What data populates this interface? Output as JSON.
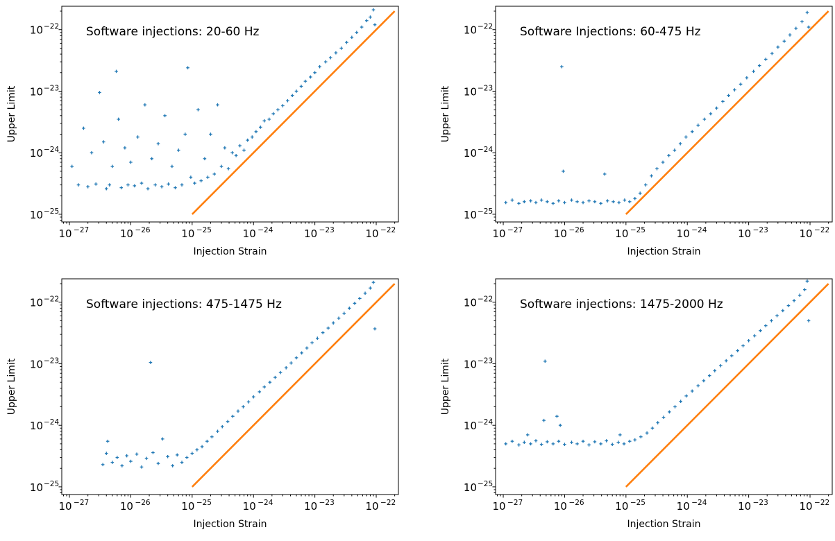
{
  "colors": {
    "points": "#1f77b4",
    "reference_line": "#ff7f0e",
    "axes": "#000000"
  },
  "chart_data": [
    {
      "type": "scatter",
      "title": "Software injections: 20-60 Hz",
      "xlabel": "Injection Strain",
      "ylabel": "Upper Limit",
      "xscale": "log",
      "yscale": "log",
      "xlim": [
        7.5e-28,
        2.3e-22
      ],
      "ylim": [
        7.5e-26,
        2.4e-22
      ],
      "xticks": [
        1e-27,
        1e-26,
        1e-25,
        1e-24,
        1e-23,
        1e-22
      ],
      "xtick_labels": [
        "10^-27",
        "10^-26",
        "10^-25",
        "10^-24",
        "10^-23",
        "10^-22"
      ],
      "yticks": [
        1e-25,
        1e-24,
        1e-23,
        1e-22
      ],
      "ytick_labels": [
        "10^-25",
        "10^-24",
        "10^-23",
        "10^-22"
      ],
      "grid": false,
      "line": {
        "x": [
          1e-25,
          2e-22
        ],
        "y": [
          1e-25,
          2e-22
        ]
      },
      "points": [
        [
          1.1e-27,
          6e-25
        ],
        [
          1.4e-27,
          3e-25
        ],
        [
          1.7e-27,
          2.5e-24
        ],
        [
          2e-27,
          2.8e-25
        ],
        [
          2.3e-27,
          1e-24
        ],
        [
          2.7e-27,
          3.1e-25
        ],
        [
          3.1e-27,
          9.5e-24
        ],
        [
          3.6e-27,
          1.5e-24
        ],
        [
          4e-27,
          2.6e-25
        ],
        [
          4.5e-27,
          3e-25
        ],
        [
          5e-27,
          6e-25
        ],
        [
          5.8e-27,
          2.1e-23
        ],
        [
          6.3e-27,
          3.5e-24
        ],
        [
          7e-27,
          2.7e-25
        ],
        [
          8e-27,
          1.2e-24
        ],
        [
          9e-27,
          3e-25
        ],
        [
          1e-26,
          7e-25
        ],
        [
          1.15e-26,
          2.9e-25
        ],
        [
          1.3e-26,
          1.8e-24
        ],
        [
          1.5e-26,
          3.2e-25
        ],
        [
          1.7e-26,
          6e-24
        ],
        [
          1.9e-26,
          2.6e-25
        ],
        [
          2.2e-26,
          8e-25
        ],
        [
          2.5e-26,
          3e-25
        ],
        [
          2.8e-26,
          1.4e-24
        ],
        [
          3.2e-26,
          2.8e-25
        ],
        [
          3.6e-26,
          4e-24
        ],
        [
          4.1e-26,
          3.1e-25
        ],
        [
          4.7e-26,
          6e-25
        ],
        [
          5.3e-26,
          2.7e-25
        ],
        [
          6e-26,
          1.1e-24
        ],
        [
          6.8e-26,
          3e-25
        ],
        [
          7.7e-26,
          2e-24
        ],
        [
          8.5e-26,
          2.4e-23
        ],
        [
          9.5e-26,
          4e-25
        ],
        [
          1.1e-25,
          3.2e-25
        ],
        [
          1.25e-25,
          5e-24
        ],
        [
          1.4e-25,
          3.5e-25
        ],
        [
          1.6e-25,
          8e-25
        ],
        [
          1.8e-25,
          4e-25
        ],
        [
          2e-25,
          2e-24
        ],
        [
          2.3e-25,
          4.5e-25
        ],
        [
          2.6e-25,
          6e-24
        ],
        [
          3e-25,
          6e-25
        ],
        [
          3.4e-25,
          1.2e-24
        ],
        [
          3.9e-25,
          5.5e-25
        ],
        [
          4.5e-25,
          1e-24
        ],
        [
          5.2e-25,
          9e-25
        ],
        [
          6e-25,
          1.3e-24
        ],
        [
          7e-25,
          1.1e-24
        ],
        [
          8e-25,
          1.6e-24
        ],
        [
          9.5e-25,
          1.8e-24
        ],
        [
          1.1e-24,
          2.2e-24
        ],
        [
          1.3e-24,
          2.6e-24
        ],
        [
          1.5e-24,
          3.3e-24
        ],
        [
          1.8e-24,
          3.5e-24
        ],
        [
          2.1e-24,
          4.3e-24
        ],
        [
          2.5e-24,
          5e-24
        ],
        [
          3e-24,
          5.8e-24
        ],
        [
          3.6e-24,
          7e-24
        ],
        [
          4.3e-24,
          8.5e-24
        ],
        [
          5e-24,
          1e-23
        ],
        [
          6e-24,
          1.2e-23
        ],
        [
          7e-24,
          1.45e-23
        ],
        [
          8.5e-24,
          1.7e-23
        ],
        [
          1e-23,
          2e-23
        ],
        [
          1.2e-23,
          2.5e-23
        ],
        [
          1.5e-23,
          3e-23
        ],
        [
          1.8e-23,
          3.5e-23
        ],
        [
          2.2e-23,
          4.2e-23
        ],
        [
          2.7e-23,
          5e-23
        ],
        [
          3.3e-23,
          6.2e-23
        ],
        [
          4e-23,
          7.5e-23
        ],
        [
          4.8e-23,
          9e-23
        ],
        [
          5.8e-23,
          1.1e-22
        ],
        [
          7e-23,
          1.4e-22
        ],
        [
          8e-23,
          1.6e-22
        ],
        [
          9e-23,
          2.1e-22
        ],
        [
          9.5e-23,
          1.2e-22
        ]
      ]
    },
    {
      "type": "scatter",
      "title": "Software Injections: 60-475 Hz",
      "xlabel": "Injection Strain",
      "ylabel": "Upper Limit",
      "xscale": "log",
      "yscale": "log",
      "xlim": [
        7.5e-28,
        2.3e-22
      ],
      "ylim": [
        7.5e-26,
        2.4e-22
      ],
      "xticks": [
        1e-27,
        1e-26,
        1e-25,
        1e-24,
        1e-23,
        1e-22
      ],
      "xtick_labels": [
        "10^-27",
        "10^-26",
        "10^-25",
        "10^-24",
        "10^-23",
        "10^-22"
      ],
      "yticks": [
        1e-25,
        1e-24,
        1e-23,
        1e-22
      ],
      "ytick_labels": [
        "10^-25",
        "10^-24",
        "10^-23",
        "10^-22"
      ],
      "grid": false,
      "line": {
        "x": [
          1e-25,
          2e-22
        ],
        "y": [
          1e-25,
          2e-22
        ]
      },
      "points": [
        [
          1.1e-27,
          1.55e-25
        ],
        [
          1.4e-27,
          1.7e-25
        ],
        [
          1.8e-27,
          1.5e-25
        ],
        [
          2.2e-27,
          1.6e-25
        ],
        [
          2.8e-27,
          1.65e-25
        ],
        [
          3.4e-27,
          1.55e-25
        ],
        [
          4.2e-27,
          1.7e-25
        ],
        [
          5.2e-27,
          1.6e-25
        ],
        [
          6.5e-27,
          1.5e-25
        ],
        [
          8e-27,
          1.65e-25
        ],
        [
          9e-27,
          2.5e-23
        ],
        [
          9.5e-27,
          5e-25
        ],
        [
          1e-26,
          1.55e-25
        ],
        [
          1.3e-26,
          1.7e-25
        ],
        [
          1.6e-26,
          1.6e-25
        ],
        [
          2e-26,
          1.55e-25
        ],
        [
          2.5e-26,
          1.65e-25
        ],
        [
          3.1e-26,
          1.6e-25
        ],
        [
          3.9e-26,
          1.5e-25
        ],
        [
          4.5e-26,
          4.5e-25
        ],
        [
          5e-26,
          1.65e-25
        ],
        [
          6.2e-26,
          1.6e-25
        ],
        [
          7.7e-26,
          1.55e-25
        ],
        [
          9.5e-26,
          1.7e-25
        ],
        [
          1.15e-25,
          1.6e-25
        ],
        [
          1.4e-25,
          1.8e-25
        ],
        [
          1.7e-25,
          2.2e-25
        ],
        [
          2.1e-25,
          3e-25
        ],
        [
          2.6e-25,
          4.2e-25
        ],
        [
          3.2e-25,
          5.5e-25
        ],
        [
          4e-25,
          7e-25
        ],
        [
          5e-25,
          9e-25
        ],
        [
          6.2e-25,
          1.1e-24
        ],
        [
          7.7e-25,
          1.4e-24
        ],
        [
          9.5e-25,
          1.8e-24
        ],
        [
          1.2e-24,
          2.2e-24
        ],
        [
          1.5e-24,
          2.8e-24
        ],
        [
          1.9e-24,
          3.5e-24
        ],
        [
          2.4e-24,
          4.3e-24
        ],
        [
          3e-24,
          5.3e-24
        ],
        [
          3.8e-24,
          6.8e-24
        ],
        [
          4.7e-24,
          8.5e-24
        ],
        [
          5.9e-24,
          1.05e-23
        ],
        [
          7.4e-24,
          1.3e-23
        ],
        [
          9.3e-24,
          1.65e-23
        ],
        [
          1.2e-23,
          2.1e-23
        ],
        [
          1.5e-23,
          2.6e-23
        ],
        [
          1.9e-23,
          3.3e-23
        ],
        [
          2.4e-23,
          4.1e-23
        ],
        [
          3e-23,
          5.2e-23
        ],
        [
          3.8e-23,
          6.5e-23
        ],
        [
          4.7e-23,
          8.2e-23
        ],
        [
          5.9e-23,
          1.05e-22
        ],
        [
          7.4e-23,
          1.35e-22
        ],
        [
          9e-23,
          1.9e-22
        ],
        [
          9.5e-23,
          1.1e-22
        ]
      ]
    },
    {
      "type": "scatter",
      "title": "Software injections: 475-1475 Hz",
      "xlabel": "Injection Strain",
      "ylabel": "Upper Limit",
      "xscale": "log",
      "yscale": "log",
      "xlim": [
        7.5e-28,
        2.3e-22
      ],
      "ylim": [
        7.5e-26,
        2.4e-22
      ],
      "xticks": [
        1e-27,
        1e-26,
        1e-25,
        1e-24,
        1e-23,
        1e-22
      ],
      "xtick_labels": [
        "10^-27",
        "10^-26",
        "10^-25",
        "10^-24",
        "10^-23",
        "10^-22"
      ],
      "yticks": [
        1e-25,
        1e-24,
        1e-23,
        1e-22
      ],
      "ytick_labels": [
        "10^-25",
        "10^-24",
        "10^-23",
        "10^-22"
      ],
      "grid": false,
      "line": {
        "x": [
          1e-25,
          2e-22
        ],
        "y": [
          1e-25,
          2e-22
        ]
      },
      "points": [
        [
          3.5e-27,
          2.3e-25
        ],
        [
          4e-27,
          3.5e-25
        ],
        [
          4.2e-27,
          5.5e-25
        ],
        [
          5e-27,
          2.5e-25
        ],
        [
          6e-27,
          3e-25
        ],
        [
          7.2e-27,
          2.2e-25
        ],
        [
          8.6e-27,
          3.2e-25
        ],
        [
          1e-26,
          2.6e-25
        ],
        [
          1.25e-26,
          3.4e-25
        ],
        [
          1.5e-26,
          2.1e-25
        ],
        [
          1.8e-26,
          2.9e-25
        ],
        [
          2.1e-26,
          1.05e-23
        ],
        [
          2.3e-26,
          3.6e-25
        ],
        [
          2.8e-26,
          2.4e-25
        ],
        [
          3.3e-26,
          6e-25
        ],
        [
          4e-26,
          3.1e-25
        ],
        [
          4.8e-26,
          2.2e-25
        ],
        [
          5.7e-26,
          3.3e-25
        ],
        [
          6.8e-26,
          2.5e-25
        ],
        [
          8.2e-26,
          3e-25
        ],
        [
          1e-25,
          3.5e-25
        ],
        [
          1.2e-25,
          4e-25
        ],
        [
          1.45e-25,
          4.5e-25
        ],
        [
          1.75e-25,
          5.5e-25
        ],
        [
          2.1e-25,
          6.5e-25
        ],
        [
          2.6e-25,
          8e-25
        ],
        [
          3.1e-25,
          9.5e-25
        ],
        [
          3.8e-25,
          1.15e-24
        ],
        [
          4.6e-25,
          1.4e-24
        ],
        [
          5.6e-25,
          1.7e-24
        ],
        [
          6.8e-25,
          2e-24
        ],
        [
          8.3e-25,
          2.4e-24
        ],
        [
          1e-24,
          2.9e-24
        ],
        [
          1.25e-24,
          3.5e-24
        ],
        [
          1.5e-24,
          4.2e-24
        ],
        [
          1.85e-24,
          5e-24
        ],
        [
          2.25e-24,
          6e-24
        ],
        [
          2.75e-24,
          7.2e-24
        ],
        [
          3.4e-24,
          8.6e-24
        ],
        [
          4.1e-24,
          1.03e-23
        ],
        [
          5e-24,
          1.25e-23
        ],
        [
          6.1e-24,
          1.5e-23
        ],
        [
          7.4e-24,
          1.8e-23
        ],
        [
          9e-24,
          2.2e-23
        ],
        [
          1.1e-23,
          2.6e-23
        ],
        [
          1.35e-23,
          3.2e-23
        ],
        [
          1.65e-23,
          3.8e-23
        ],
        [
          2e-23,
          4.6e-23
        ],
        [
          2.45e-23,
          5.5e-23
        ],
        [
          3e-23,
          6.6e-23
        ],
        [
          3.65e-23,
          8e-23
        ],
        [
          4.45e-23,
          9.6e-23
        ],
        [
          5.4e-23,
          1.15e-22
        ],
        [
          6.6e-23,
          1.4e-22
        ],
        [
          8e-23,
          1.7e-22
        ],
        [
          9e-23,
          2.1e-22
        ],
        [
          9.5e-23,
          3.7e-23
        ]
      ]
    },
    {
      "type": "scatter",
      "title": "Software injections: 1475-2000 Hz",
      "xlabel": "Injection Strain",
      "ylabel": "Upper Limit",
      "xscale": "log",
      "yscale": "log",
      "xlim": [
        7.5e-28,
        2.3e-22
      ],
      "ylim": [
        7.5e-26,
        2.4e-22
      ],
      "xticks": [
        1e-27,
        1e-26,
        1e-25,
        1e-24,
        1e-23,
        1e-22
      ],
      "xtick_labels": [
        "10^-27",
        "10^-26",
        "10^-25",
        "10^-24",
        "10^-23",
        "10^-22"
      ],
      "yticks": [
        1e-25,
        1e-24,
        1e-23,
        1e-22
      ],
      "ytick_labels": [
        "10^-25",
        "10^-24",
        "10^-23",
        "10^-22"
      ],
      "grid": false,
      "line": {
        "x": [
          1e-25,
          2e-22
        ],
        "y": [
          1e-25,
          2e-22
        ]
      },
      "points": [
        [
          1.1e-27,
          5e-25
        ],
        [
          1.4e-27,
          5.5e-25
        ],
        [
          1.8e-27,
          4.8e-25
        ],
        [
          2.2e-27,
          5.3e-25
        ],
        [
          2.5e-27,
          7e-25
        ],
        [
          2.8e-27,
          5e-25
        ],
        [
          3.4e-27,
          5.6e-25
        ],
        [
          4.2e-27,
          4.9e-25
        ],
        [
          4.6e-27,
          1.2e-24
        ],
        [
          4.8e-27,
          1.1e-23
        ],
        [
          5.2e-27,
          5.4e-25
        ],
        [
          6.5e-27,
          5e-25
        ],
        [
          7.5e-27,
          1.4e-24
        ],
        [
          8e-27,
          5.5e-25
        ],
        [
          8.5e-27,
          1e-24
        ],
        [
          1e-26,
          4.9e-25
        ],
        [
          1.3e-26,
          5.3e-25
        ],
        [
          1.6e-26,
          5e-25
        ],
        [
          2e-26,
          5.5e-25
        ],
        [
          2.5e-26,
          4.8e-25
        ],
        [
          3.1e-26,
          5.4e-25
        ],
        [
          3.9e-26,
          5e-25
        ],
        [
          4.8e-26,
          5.6e-25
        ],
        [
          6e-26,
          4.9e-25
        ],
        [
          7.5e-26,
          5.3e-25
        ],
        [
          8e-26,
          7e-25
        ],
        [
          9.3e-26,
          5e-25
        ],
        [
          1.15e-25,
          5.5e-25
        ],
        [
          1.4e-25,
          5.8e-25
        ],
        [
          1.75e-25,
          6.5e-25
        ],
        [
          2.2e-25,
          7.5e-25
        ],
        [
          2.7e-25,
          9e-25
        ],
        [
          3.3e-25,
          1.1e-24
        ],
        [
          4.1e-25,
          1.35e-24
        ],
        [
          5.1e-25,
          1.65e-24
        ],
        [
          6.3e-25,
          2e-24
        ],
        [
          7.8e-25,
          2.45e-24
        ],
        [
          9.6e-25,
          3e-24
        ],
        [
          1.2e-24,
          3.6e-24
        ],
        [
          1.5e-24,
          4.4e-24
        ],
        [
          1.85e-24,
          5.3e-24
        ],
        [
          2.3e-24,
          6.4e-24
        ],
        [
          2.8e-24,
          7.7e-24
        ],
        [
          3.5e-24,
          9.3e-24
        ],
        [
          4.3e-24,
          1.12e-23
        ],
        [
          5.3e-24,
          1.35e-23
        ],
        [
          6.6e-24,
          1.63e-23
        ],
        [
          8.1e-24,
          1.96e-23
        ],
        [
          1e-23,
          2.37e-23
        ],
        [
          1.25e-23,
          2.85e-23
        ],
        [
          1.55e-23,
          3.45e-23
        ],
        [
          1.9e-23,
          4.15e-23
        ],
        [
          2.35e-23,
          5e-23
        ],
        [
          2.9e-23,
          6.05e-23
        ],
        [
          3.6e-23,
          7.3e-23
        ],
        [
          4.45e-23,
          8.8e-23
        ],
        [
          5.5e-23,
          1.06e-22
        ],
        [
          6.8e-23,
          1.3e-22
        ],
        [
          8.2e-23,
          1.6e-22
        ],
        [
          9e-23,
          2.2e-22
        ],
        [
          9.5e-23,
          5e-23
        ]
      ]
    }
  ]
}
